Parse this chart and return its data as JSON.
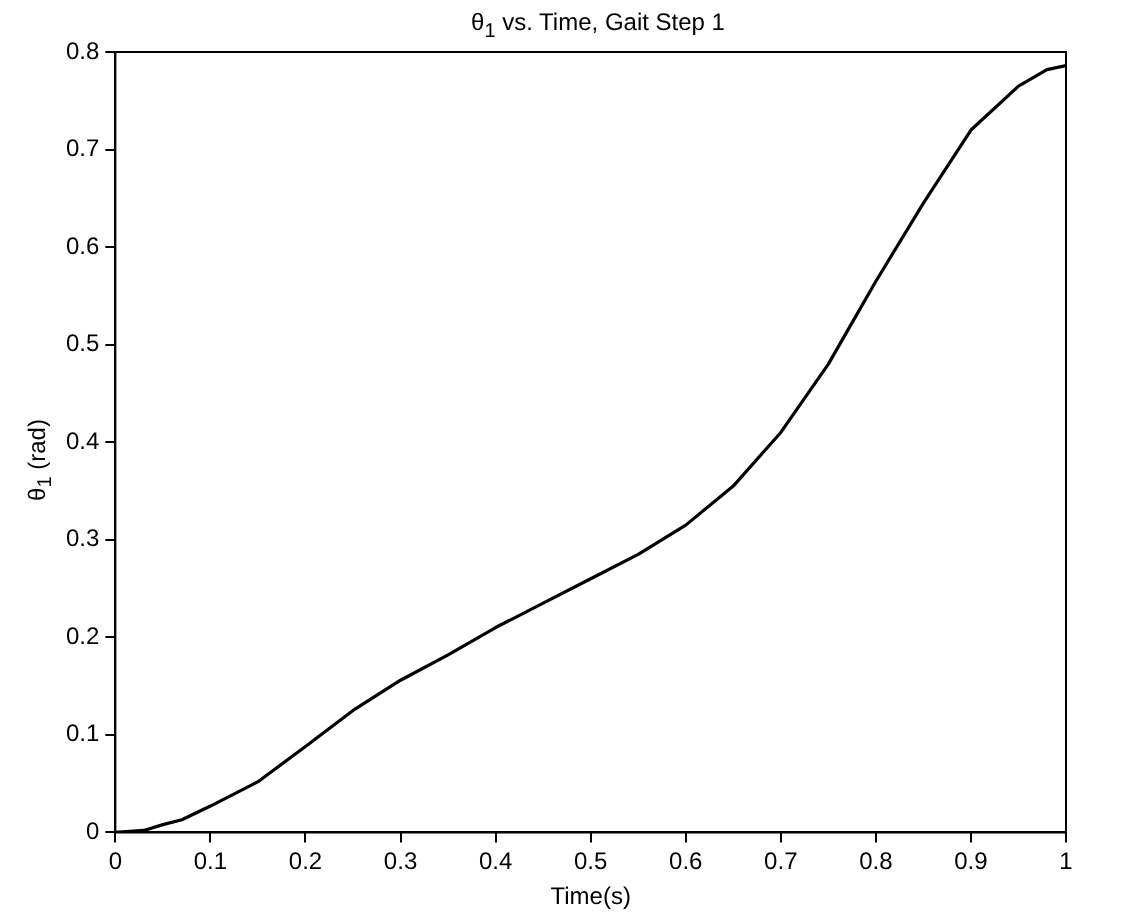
{
  "chart_data": {
    "type": "line",
    "title": "θ$_{1}$ vs. Time, Gait Step 1",
    "xlabel": "Time(s)",
    "ylabel": "θ$_{1}$ (rad)",
    "x": [
      0,
      0.03,
      0.05,
      0.07,
      0.1,
      0.15,
      0.2,
      0.25,
      0.3,
      0.35,
      0.4,
      0.45,
      0.5,
      0.55,
      0.6,
      0.65,
      0.7,
      0.75,
      0.8,
      0.85,
      0.9,
      0.95,
      0.98,
      1
    ],
    "series": [
      {
        "color": "#000000",
        "values": [
          0,
          0.002,
          0.008,
          0.013,
          0.027,
          0.052,
          0.088,
          0.125,
          0.156,
          0.182,
          0.21,
          0.235,
          0.26,
          0.285,
          0.315,
          0.355,
          0.41,
          0.48,
          0.565,
          0.645,
          0.72,
          0.765,
          0.782,
          0.786
        ]
      }
    ],
    "xlim": [
      0,
      1
    ],
    "xticks": [
      0,
      0.1,
      0.2,
      0.3,
      0.4,
      0.5,
      0.6,
      0.7,
      0.8,
      0.9,
      1
    ],
    "ylim": [
      0,
      0.8
    ],
    "yticks": [
      0,
      0.1,
      0.2,
      0.3,
      0.4,
      0.5,
      0.6,
      0.7,
      0.8
    ],
    "grid": false,
    "legend": false,
    "marker": "none",
    "line_style": "solid"
  }
}
